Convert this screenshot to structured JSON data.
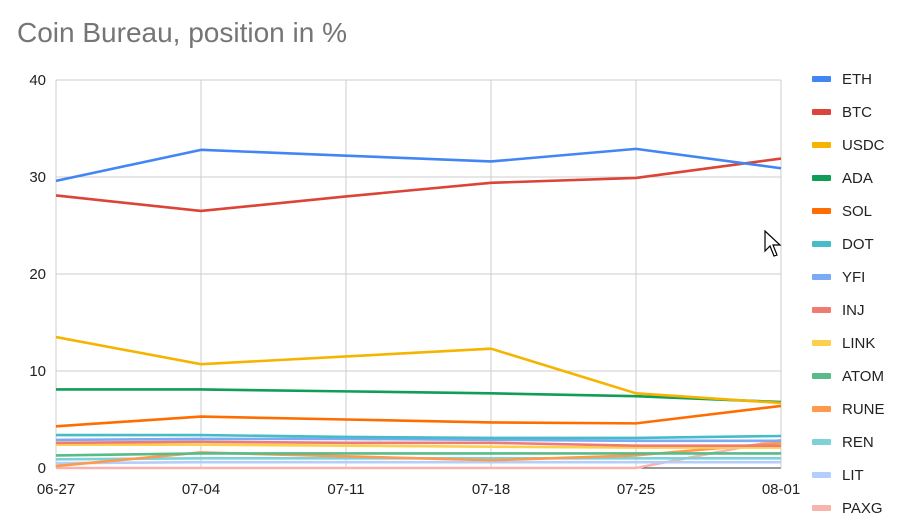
{
  "chart_data": {
    "type": "line",
    "title": "Coin Bureau, position in %",
    "xlabel": "",
    "ylabel": "",
    "categories": [
      "06-27",
      "07-04",
      "07-11",
      "07-18",
      "07-25",
      "08-01"
    ],
    "ylim": [
      0,
      40
    ],
    "yticks": [
      0,
      10,
      20,
      30,
      40
    ],
    "grid": true,
    "legend_position": "right",
    "series": [
      {
        "name": "ETH",
        "color": "#4285f4",
        "values": [
          29.6,
          32.8,
          32.2,
          31.6,
          32.9,
          30.9
        ]
      },
      {
        "name": "BTC",
        "color": "#db4437",
        "values": [
          28.1,
          26.5,
          28.0,
          29.4,
          29.9,
          31.9
        ]
      },
      {
        "name": "USDC",
        "color": "#f4b400",
        "values": [
          13.5,
          10.7,
          11.5,
          12.3,
          7.7,
          6.7
        ]
      },
      {
        "name": "ADA",
        "color": "#0f9d58",
        "values": [
          8.1,
          8.1,
          7.9,
          7.7,
          7.4,
          6.8
        ]
      },
      {
        "name": "SOL",
        "color": "#ff6d00",
        "values": [
          4.3,
          5.3,
          5.0,
          4.7,
          4.6,
          6.4
        ]
      },
      {
        "name": "DOT",
        "color": "#46bdc6",
        "values": [
          3.4,
          3.4,
          3.2,
          3.1,
          3.1,
          3.3
        ]
      },
      {
        "name": "YFI",
        "color": "#7baaf7",
        "values": [
          2.9,
          3.0,
          3.0,
          2.9,
          2.8,
          2.8
        ]
      },
      {
        "name": "INJ",
        "color": "#f07b72",
        "values": [
          2.6,
          2.7,
          2.6,
          2.6,
          2.3,
          2.3
        ]
      },
      {
        "name": "LINK",
        "color": "#fcd04f",
        "values": [
          2.4,
          2.4,
          2.3,
          2.2,
          2.1,
          2.1
        ]
      },
      {
        "name": "ATOM",
        "color": "#57bb8a",
        "values": [
          1.3,
          1.5,
          1.5,
          1.5,
          1.5,
          1.5
        ]
      },
      {
        "name": "RUNE",
        "color": "#ff994d",
        "values": [
          0.2,
          1.6,
          1.2,
          0.8,
          1.3,
          2.6
        ]
      },
      {
        "name": "REN",
        "color": "#7ed1d7",
        "values": [
          0.9,
          1.0,
          1.0,
          1.0,
          1.0,
          1.0
        ]
      },
      {
        "name": "LIT",
        "color": "#b3cefb",
        "values": [
          0.5,
          0.6,
          0.6,
          0.6,
          0.6,
          0.6
        ]
      },
      {
        "name": "PAXG",
        "color": "#f7b4ae",
        "values": [
          0.0,
          0.0,
          0.0,
          0.0,
          0.0,
          2.9
        ]
      }
    ]
  }
}
